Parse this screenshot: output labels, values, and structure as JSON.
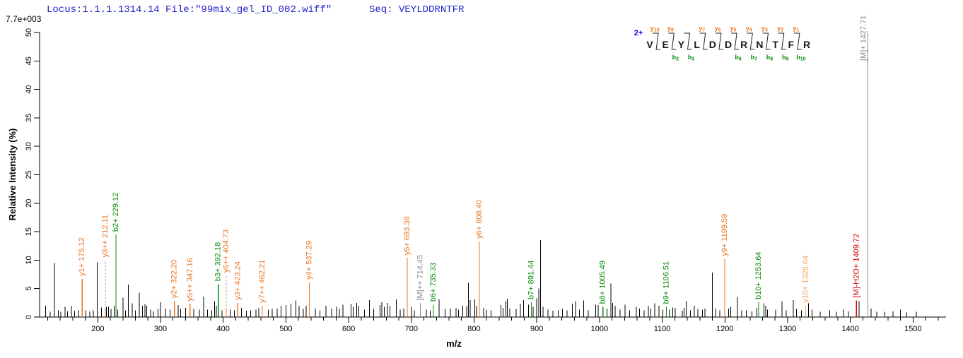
{
  "header": {
    "locus_text": "Locus:1.1.1.1314.14 File:\"99mix_gel_ID_002.wiff\"",
    "seq_text": "Seq: VEYLDDRNTFR",
    "intensity_scale": "7.7e+003"
  },
  "axes": {
    "x_label": "m/z",
    "y_label": "Relative  Intensity (%)",
    "x_range": [
      114,
      1552
    ],
    "y_range": [
      0,
      50
    ],
    "x_major_ticks": [
      200,
      300,
      400,
      500,
      600,
      700,
      800,
      900,
      1000,
      1100,
      1200,
      1300,
      1400,
      1500
    ],
    "x_minor_step": 20,
    "y_ticks": [
      0,
      5,
      10,
      15,
      20,
      25,
      30,
      35,
      40,
      45,
      50
    ]
  },
  "annotation": {
    "charge": "2+",
    "residues": [
      "V",
      "E",
      "Y",
      "L",
      "D",
      "D",
      "R",
      "N",
      "T",
      "F",
      "R"
    ],
    "y_ions": [
      {
        "gap": 1,
        "ion": "y",
        "num": "10"
      },
      {
        "gap": 2,
        "ion": "y",
        "num": "9"
      },
      {
        "gap": 4,
        "ion": "y",
        "num": "7"
      },
      {
        "gap": 5,
        "ion": "y",
        "num": "6"
      },
      {
        "gap": 6,
        "ion": "y",
        "num": "5"
      },
      {
        "gap": 7,
        "ion": "y",
        "num": "4"
      },
      {
        "gap": 8,
        "ion": "y",
        "num": "3"
      },
      {
        "gap": 9,
        "ion": "y",
        "num": "2"
      },
      {
        "gap": 10,
        "ion": "y",
        "num": "1"
      }
    ],
    "b_ions": [
      {
        "gap": 2,
        "ion": "b",
        "num": "2"
      },
      {
        "gap": 3,
        "ion": "b",
        "num": "3"
      },
      {
        "gap": 6,
        "ion": "b",
        "num": "6"
      },
      {
        "gap": 7,
        "ion": "b",
        "num": "7"
      },
      {
        "gap": 8,
        "ion": "b",
        "num": "8"
      },
      {
        "gap": 9,
        "ion": "b",
        "num": "9"
      },
      {
        "gap": 10,
        "ion": "b",
        "num": "10"
      }
    ]
  },
  "colors": {
    "y_ion": "#ed7420",
    "y_ion_weak": "#f2a35f",
    "b_ion": "#0a8c0a",
    "neutral_loss": "#e00000",
    "precursor": "#8c8c8c",
    "dashed": "#aaaaaa",
    "peak": "#000000",
    "header_blue": "#2222cc",
    "charge_blue": "#0000ff"
  },
  "chart_data": {
    "type": "bar",
    "subtype": "ms2-mass-spectrum",
    "title": "",
    "xlabel": "m/z",
    "ylabel": "Relative Intensity (%)",
    "xlim": [
      114,
      1552
    ],
    "ylim": [
      0,
      50
    ],
    "labeled_peaks": [
      {
        "label": "y1+ 175.12",
        "mz": 175.12,
        "intensity": 6.7,
        "series": "y_ion",
        "dashed": false
      },
      {
        "label": "y3++ 212.11",
        "mz": 212.11,
        "intensity": 1.5,
        "series": "y_ion",
        "dashed": true,
        "dash_top": 10.0
      },
      {
        "label": "b2+ 229.12",
        "mz": 229.12,
        "intensity": 14.5,
        "series": "b_ion",
        "dashed": false
      },
      {
        "label": "y2+ 322.20",
        "mz": 322.2,
        "intensity": 2.8,
        "series": "y_ion",
        "dashed": false
      },
      {
        "label": "y5++ 347.16",
        "mz": 347.16,
        "intensity": 2.3,
        "series": "y_ion",
        "dashed": false
      },
      {
        "label": "b3+ 392.18",
        "mz": 392.18,
        "intensity": 5.8,
        "series": "b_ion",
        "dashed": false
      },
      {
        "label": "y6++ 404.73",
        "mz": 404.73,
        "intensity": 1.5,
        "series": "y_ion",
        "dashed": true,
        "dash_top": 7.3
      },
      {
        "label": "y3+ 423.24",
        "mz": 423.24,
        "intensity": 2.5,
        "series": "y_ion",
        "dashed": false
      },
      {
        "label": "y7++ 462.21",
        "mz": 462.21,
        "intensity": 2.0,
        "series": "y_ion",
        "dashed": false
      },
      {
        "label": "y4+ 537.29",
        "mz": 537.29,
        "intensity": 6.1,
        "series": "y_ion",
        "dashed": false
      },
      {
        "label": "y5+ 693.38",
        "mz": 693.38,
        "intensity": 10.4,
        "series": "y_ion",
        "dashed": false
      },
      {
        "label": "[M]++ 714.45",
        "mz": 714.45,
        "intensity": 2.4,
        "series": "precursor",
        "dashed": false
      },
      {
        "label": "b6+ 735.33",
        "mz": 735.33,
        "intensity": 2.2,
        "series": "b_ion",
        "dashed": false
      },
      {
        "label": "y6+ 808.40",
        "mz": 808.4,
        "intensity": 13.3,
        "series": "y_ion",
        "dashed": false
      },
      {
        "label": "b7+ 891.44",
        "mz": 891.44,
        "intensity": 2.6,
        "series": "b_ion",
        "dashed": false
      },
      {
        "label": "b8+ 1005.49",
        "mz": 1005.49,
        "intensity": 1.8,
        "series": "b_ion",
        "dashed": false
      },
      {
        "label": "b9+ 1106.51",
        "mz": 1106.51,
        "intensity": 1.8,
        "series": "b_ion",
        "dashed": false
      },
      {
        "label": "y9+ 1199.59",
        "mz": 1199.59,
        "intensity": 10.2,
        "series": "y_ion",
        "dashed": false
      },
      {
        "label": "b10+ 1253.64",
        "mz": 1253.64,
        "intensity": 2.6,
        "series": "b_ion",
        "dashed": false
      },
      {
        "label": "y10+ 1328.64",
        "mz": 1328.64,
        "intensity": 2.0,
        "series": "y_ion_weak",
        "dashed": false
      },
      {
        "label": "[M]-H2O+ 1409.72",
        "mz": 1409.72,
        "intensity": 2.9,
        "series": "neutral_loss",
        "dashed": false
      },
      {
        "label": "[M]+ 1427.71",
        "mz": 1427.71,
        "intensity": 50,
        "series": "precursor",
        "dashed": false,
        "full_height": true
      }
    ],
    "unlabeled_peaks": [
      [
        117,
        2.0
      ],
      [
        124,
        0.9
      ],
      [
        131,
        9.5
      ],
      [
        137,
        1.2
      ],
      [
        141,
        0.9
      ],
      [
        148,
        1.8
      ],
      [
        152,
        1.0
      ],
      [
        158,
        1.9
      ],
      [
        163,
        1.1
      ],
      [
        169,
        1.2
      ],
      [
        181,
        1.2
      ],
      [
        187,
        1.0
      ],
      [
        193,
        1.2
      ],
      [
        199,
        9.6
      ],
      [
        206,
        1.7
      ],
      [
        214,
        1.8
      ],
      [
        217,
        1.8
      ],
      [
        221,
        1.4
      ],
      [
        226,
        2.0
      ],
      [
        232,
        1.3
      ],
      [
        240,
        3.4
      ],
      [
        244,
        1.2
      ],
      [
        249,
        5.7
      ],
      [
        255,
        2.4
      ],
      [
        260,
        1.2
      ],
      [
        266,
        4.3
      ],
      [
        271,
        2.0
      ],
      [
        275,
        2.3
      ],
      [
        278,
        2.0
      ],
      [
        284,
        1.3
      ],
      [
        289,
        1.0
      ],
      [
        296,
        1.4
      ],
      [
        300,
        2.6
      ],
      [
        308,
        1.5
      ],
      [
        315,
        1.3
      ],
      [
        328,
        2.1
      ],
      [
        332,
        1.4
      ],
      [
        340,
        1.6
      ],
      [
        353,
        1.4
      ],
      [
        362,
        1.3
      ],
      [
        369,
        3.6
      ],
      [
        375,
        1.3
      ],
      [
        382,
        1.2
      ],
      [
        386,
        2.8
      ],
      [
        389,
        2.0
      ],
      [
        398,
        1.2
      ],
      [
        411,
        1.3
      ],
      [
        418,
        1.2
      ],
      [
        429,
        1.6
      ],
      [
        437,
        1.1
      ],
      [
        444,
        1.2
      ],
      [
        452,
        1.3
      ],
      [
        457,
        1.6
      ],
      [
        472,
        1.3
      ],
      [
        478,
        1.4
      ],
      [
        486,
        1.5
      ],
      [
        492,
        2.0
      ],
      [
        500,
        2.1
      ],
      [
        508,
        2.3
      ],
      [
        516,
        2.9
      ],
      [
        521,
        1.9
      ],
      [
        528,
        1.4
      ],
      [
        532,
        2.0
      ],
      [
        547,
        1.5
      ],
      [
        554,
        1.2
      ],
      [
        564,
        2.0
      ],
      [
        573,
        1.5
      ],
      [
        581,
        1.8
      ],
      [
        585,
        1.4
      ],
      [
        591,
        2.2
      ],
      [
        604,
        2.3
      ],
      [
        607,
        1.8
      ],
      [
        613,
        2.5
      ],
      [
        616,
        2.0
      ],
      [
        625,
        1.3
      ],
      [
        633,
        3.0
      ],
      [
        640,
        1.4
      ],
      [
        650,
        2.1
      ],
      [
        653,
        2.6
      ],
      [
        657,
        1.8
      ],
      [
        662,
        2.5
      ],
      [
        666,
        2.0
      ],
      [
        676,
        3.1
      ],
      [
        682,
        1.3
      ],
      [
        688,
        1.5
      ],
      [
        700,
        1.8
      ],
      [
        705,
        1.2
      ],
      [
        724,
        1.3
      ],
      [
        730,
        1.1
      ],
      [
        744,
        3.1
      ],
      [
        754,
        1.4
      ],
      [
        762,
        1.5
      ],
      [
        771,
        1.6
      ],
      [
        775,
        1.3
      ],
      [
        782,
        2.0
      ],
      [
        788,
        1.9
      ],
      [
        791,
        6.0
      ],
      [
        794,
        3.0
      ],
      [
        801,
        3.1
      ],
      [
        804,
        2.0
      ],
      [
        815,
        1.6
      ],
      [
        820,
        1.3
      ],
      [
        827,
        1.2
      ],
      [
        843,
        2.1
      ],
      [
        846,
        1.6
      ],
      [
        851,
        2.8
      ],
      [
        853,
        3.2
      ],
      [
        857,
        1.5
      ],
      [
        867,
        1.4
      ],
      [
        874,
        2.3
      ],
      [
        879,
        3.0
      ],
      [
        887,
        2.2
      ],
      [
        894,
        1.8
      ],
      [
        900,
        3.3
      ],
      [
        903,
        5.0
      ],
      [
        906,
        13.5
      ],
      [
        910,
        1.8
      ],
      [
        918,
        1.3
      ],
      [
        926,
        1.1
      ],
      [
        934,
        1.2
      ],
      [
        941,
        1.4
      ],
      [
        948,
        1.2
      ],
      [
        957,
        2.3
      ],
      [
        962,
        2.8
      ],
      [
        968,
        1.3
      ],
      [
        975,
        2.9
      ],
      [
        982,
        1.2
      ],
      [
        994,
        2.2
      ],
      [
        998,
        2.1
      ],
      [
        1012,
        1.5
      ],
      [
        1018,
        5.9
      ],
      [
        1021,
        2.5
      ],
      [
        1025,
        2.0
      ],
      [
        1033,
        1.3
      ],
      [
        1041,
        2.2
      ],
      [
        1048,
        1.2
      ],
      [
        1059,
        1.8
      ],
      [
        1064,
        1.5
      ],
      [
        1071,
        1.2
      ],
      [
        1078,
        2.0
      ],
      [
        1082,
        1.5
      ],
      [
        1088,
        2.4
      ],
      [
        1095,
        2.0
      ],
      [
        1101,
        1.3
      ],
      [
        1112,
        1.3
      ],
      [
        1117,
        1.7
      ],
      [
        1121,
        1.6
      ],
      [
        1132,
        1.1
      ],
      [
        1135,
        1.6
      ],
      [
        1138,
        2.8
      ],
      [
        1145,
        1.2
      ],
      [
        1151,
        2.0
      ],
      [
        1157,
        1.4
      ],
      [
        1164,
        1.3
      ],
      [
        1168,
        1.5
      ],
      [
        1180,
        7.8
      ],
      [
        1185,
        1.5
      ],
      [
        1192,
        1.2
      ],
      [
        1206,
        1.5
      ],
      [
        1209,
        1.8
      ],
      [
        1220,
        3.5
      ],
      [
        1227,
        1.2
      ],
      [
        1234,
        1.2
      ],
      [
        1243,
        1.0
      ],
      [
        1251,
        1.6
      ],
      [
        1262,
        2.4
      ],
      [
        1265,
        2.0
      ],
      [
        1268,
        1.3
      ],
      [
        1281,
        1.3
      ],
      [
        1291,
        2.7
      ],
      [
        1298,
        1.2
      ],
      [
        1309,
        3.0
      ],
      [
        1314,
        1.4
      ],
      [
        1322,
        1.2
      ],
      [
        1333,
        2.4
      ],
      [
        1339,
        1.3
      ],
      [
        1352,
        0.9
      ],
      [
        1367,
        1.2
      ],
      [
        1378,
        0.9
      ],
      [
        1389,
        1.3
      ],
      [
        1397,
        1.0
      ],
      [
        1414,
        2.8
      ],
      [
        1433,
        1.5
      ],
      [
        1442,
        0.9
      ],
      [
        1455,
        0.9
      ],
      [
        1468,
        1.0
      ],
      [
        1480,
        1.3
      ],
      [
        1490,
        0.8
      ],
      [
        1505,
        0.9
      ]
    ]
  }
}
